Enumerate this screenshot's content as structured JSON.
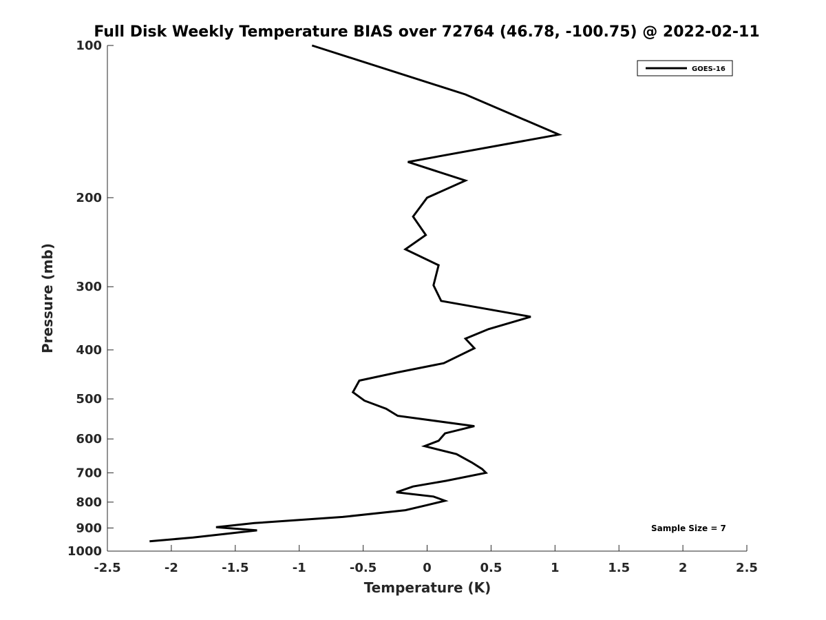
{
  "chart_data": {
    "type": "line",
    "title": "Full Disk Weekly Temperature BIAS over 72764 (46.78, -100.75) @ 2022-02-11",
    "xlabel": "Temperature (K)",
    "ylabel": "Pressure (mb)",
    "xlim": [
      -2.5,
      2.5
    ],
    "ylim": [
      100,
      1000
    ],
    "y_scale": "log",
    "y_reversed": true,
    "x_ticks": [
      "-2.5",
      "-2",
      "-1.5",
      "-1",
      "-0.5",
      "0",
      "0.5",
      "1",
      "1.5",
      "2",
      "2.5"
    ],
    "x_tick_values": [
      -2.5,
      -2,
      -1.5,
      -1,
      -0.5,
      0,
      0.5,
      1,
      1.5,
      2,
      2.5
    ],
    "y_ticks": [
      "100",
      "200",
      "300",
      "400",
      "500",
      "600",
      "700",
      "800",
      "900",
      "1000"
    ],
    "y_tick_values": [
      100,
      200,
      300,
      400,
      500,
      600,
      700,
      800,
      900,
      1000
    ],
    "grid": false,
    "legend_position": "top-right",
    "series": [
      {
        "name": "GOES-16",
        "color": "#000000",
        "points": [
          [
            -0.9,
            100
          ],
          [
            0.3,
            125
          ],
          [
            1.03,
            150
          ],
          [
            -0.15,
            170
          ],
          [
            0.3,
            185
          ],
          [
            0.0,
            200
          ],
          [
            -0.11,
            218
          ],
          [
            -0.01,
            237
          ],
          [
            -0.17,
            253
          ],
          [
            0.09,
            272
          ],
          [
            0.05,
            298
          ],
          [
            0.11,
            320
          ],
          [
            0.81,
            344
          ],
          [
            0.48,
            364
          ],
          [
            0.3,
            380
          ],
          [
            0.37,
            397
          ],
          [
            0.13,
            425
          ],
          [
            -0.23,
            443
          ],
          [
            -0.53,
            460
          ],
          [
            -0.58,
            485
          ],
          [
            -0.49,
            504
          ],
          [
            -0.32,
            523
          ],
          [
            -0.23,
            540
          ],
          [
            0.37,
            566
          ],
          [
            0.14,
            585
          ],
          [
            0.09,
            605
          ],
          [
            -0.02,
            620
          ],
          [
            0.23,
            643
          ],
          [
            0.35,
            668
          ],
          [
            0.43,
            688
          ],
          [
            0.46,
            700
          ],
          [
            0.15,
            726
          ],
          [
            -0.11,
            745
          ],
          [
            -0.24,
            765
          ],
          [
            0.05,
            780
          ],
          [
            0.14,
            795
          ],
          [
            0.0,
            811
          ],
          [
            -0.17,
            830
          ],
          [
            -0.66,
            856
          ],
          [
            -1.35,
            880
          ],
          [
            -1.65,
            897
          ],
          [
            -1.33,
            910
          ],
          [
            -1.83,
            940
          ],
          [
            -2.17,
            956
          ]
        ]
      }
    ],
    "annotation": "Sample Size = 7"
  }
}
